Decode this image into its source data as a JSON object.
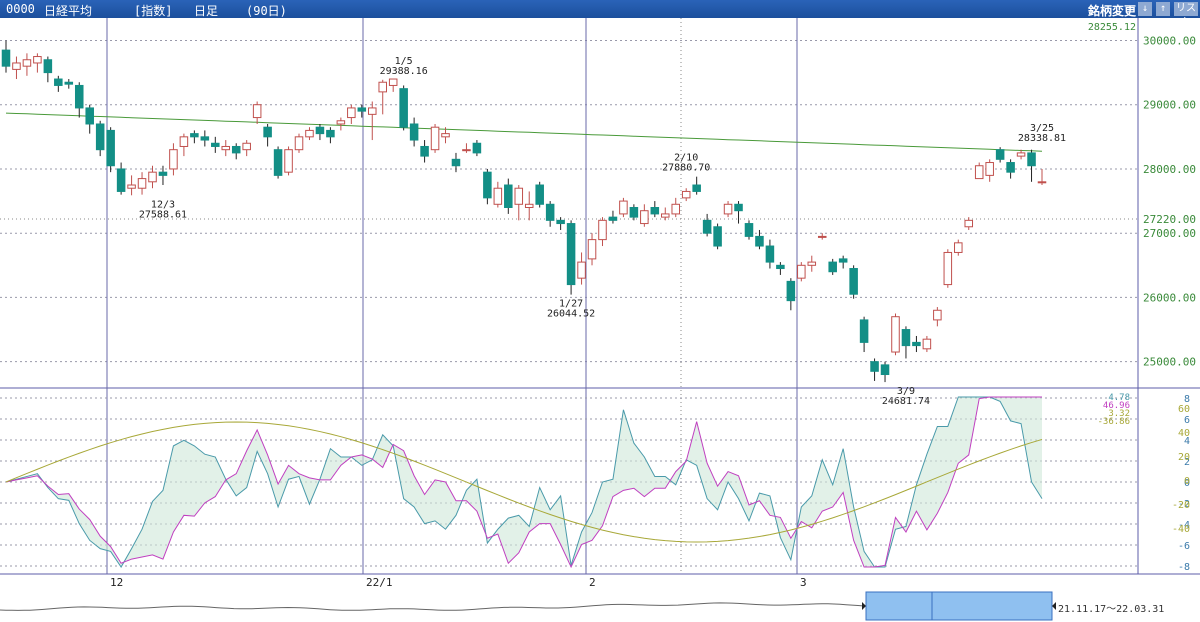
{
  "header": {
    "code": "0000",
    "name": "日経平均",
    "category": "[指数]",
    "timeframe": "日足",
    "period": "(90日)",
    "change_button": "銘柄変更",
    "list_button": "リスト"
  },
  "colors": {
    "up": "#c0504d",
    "down": "#138f86",
    "ma": "#4a9a3a",
    "ind1": "#4a9aaa",
    "ind2": "#c040c0",
    "ind3": "#a8a838"
  },
  "chart_data": {
    "type": "candlestick",
    "price_ticks": [
      "30000.00",
      "29000.00",
      "28000.00",
      "27000.00",
      "26000.00",
      "25000.00"
    ],
    "price_range": [
      24590,
      30350
    ],
    "current_marker": "27220.00",
    "top_marker": "28255.12",
    "date_labels": [
      "12",
      "22/1",
      "2",
      "3"
    ],
    "indicator_ticks": [
      "8",
      "6",
      "4",
      "2",
      "0",
      "-2",
      "-4",
      "-6",
      "-8"
    ],
    "indicator_ticks_right": [
      "60",
      "40",
      "20",
      "0",
      "-20",
      "-40"
    ],
    "indicator_values": [
      "4.78",
      "46.96",
      "3.32",
      "-36.86"
    ],
    "annotations": [
      {
        "date": "12/3",
        "value": "27588.61",
        "type": "low"
      },
      {
        "date": "1/5",
        "value": "29388.16",
        "type": "high"
      },
      {
        "date": "1/27",
        "value": "26044.52",
        "type": "low"
      },
      {
        "date": "2/10",
        "value": "27880.70",
        "type": "high"
      },
      {
        "date": "3/9",
        "value": "24681.74",
        "type": "low"
      },
      {
        "date": "3/25",
        "value": "28338.81",
        "type": "high"
      }
    ],
    "candles": [
      [
        29850,
        29600,
        30000,
        29500
      ],
      [
        29550,
        29650,
        29750,
        29400
      ],
      [
        29600,
        29700,
        29800,
        29450
      ],
      [
        29650,
        29750,
        29800,
        29500
      ],
      [
        29700,
        29500,
        29750,
        29350
      ],
      [
        29400,
        29300,
        29450,
        29200
      ],
      [
        29350,
        29320,
        29400,
        29250
      ],
      [
        29300,
        28950,
        29350,
        28800
      ],
      [
        28950,
        28700,
        29000,
        28550
      ],
      [
        28700,
        28300,
        28750,
        28200
      ],
      [
        28600,
        28050,
        28650,
        27950
      ],
      [
        28000,
        27650,
        28100,
        27600
      ],
      [
        27700,
        27750,
        27900,
        27590
      ],
      [
        27700,
        27850,
        27950,
        27600
      ],
      [
        27800,
        27950,
        28050,
        27700
      ],
      [
        27950,
        27900,
        28050,
        27750
      ],
      [
        28000,
        28300,
        28400,
        27900
      ],
      [
        28350,
        28500,
        28550,
        28200
      ],
      [
        28550,
        28500,
        28600,
        28400
      ],
      [
        28500,
        28450,
        28600,
        28350
      ],
      [
        28400,
        28350,
        28500,
        28250
      ],
      [
        28300,
        28350,
        28450,
        28200
      ],
      [
        28350,
        28250,
        28400,
        28150
      ],
      [
        28300,
        28400,
        28450,
        28200
      ],
      [
        28800,
        29000,
        29050,
        28700
      ],
      [
        28650,
        28500,
        28700,
        28350
      ],
      [
        28300,
        27900,
        28350,
        27850
      ],
      [
        27950,
        28300,
        28350,
        27900
      ],
      [
        28300,
        28500,
        28550,
        28250
      ],
      [
        28500,
        28600,
        28650,
        28450
      ],
      [
        28650,
        28550,
        28700,
        28450
      ],
      [
        28600,
        28500,
        28650,
        28400
      ],
      [
        28700,
        28750,
        28800,
        28600
      ],
      [
        28800,
        28950,
        29000,
        28700
      ],
      [
        28950,
        28900,
        29000,
        28800
      ],
      [
        28850,
        28950,
        29050,
        28450
      ],
      [
        29200,
        29350,
        29388,
        28850
      ],
      [
        29300,
        29400,
        29388,
        29200
      ],
      [
        29250,
        28650,
        29300,
        28600
      ],
      [
        28700,
        28450,
        28800,
        28350
      ],
      [
        28350,
        28200,
        28450,
        28100
      ],
      [
        28300,
        28650,
        28700,
        28250
      ],
      [
        28500,
        28550,
        28650,
        28400
      ],
      [
        28150,
        28050,
        28250,
        27950
      ],
      [
        28300,
        28300,
        28400,
        28250
      ],
      [
        28400,
        28250,
        28450,
        28200
      ],
      [
        27950,
        27550,
        28000,
        27450
      ],
      [
        27450,
        27700,
        27800,
        27400
      ],
      [
        27750,
        27400,
        27850,
        27300
      ],
      [
        27450,
        27700,
        27750,
        27200
      ],
      [
        27400,
        27450,
        27650,
        27200
      ],
      [
        27750,
        27450,
        27800,
        27400
      ],
      [
        27450,
        27200,
        27500,
        27100
      ],
      [
        27200,
        27150,
        27250,
        27050
      ],
      [
        27150,
        26200,
        27200,
        26044
      ],
      [
        26300,
        26550,
        26700,
        26200
      ],
      [
        26600,
        26900,
        27000,
        26500
      ],
      [
        26900,
        27200,
        27250,
        26800
      ],
      [
        27250,
        27200,
        27350,
        27150
      ],
      [
        27300,
        27500,
        27550,
        27250
      ],
      [
        27400,
        27250,
        27450,
        27200
      ],
      [
        27150,
        27350,
        27450,
        27100
      ],
      [
        27400,
        27300,
        27500,
        27250
      ],
      [
        27250,
        27300,
        27400,
        27200
      ],
      [
        27300,
        27450,
        27550,
        27250
      ],
      [
        27550,
        27650,
        27700,
        27500
      ],
      [
        27750,
        27650,
        27880,
        27600
      ],
      [
        27200,
        27000,
        27300,
        26950
      ],
      [
        27100,
        26800,
        27150,
        26750
      ],
      [
        27300,
        27450,
        27500,
        27250
      ],
      [
        27450,
        27350,
        27500,
        27150
      ],
      [
        27150,
        26950,
        27200,
        26900
      ],
      [
        26950,
        26800,
        27050,
        26750
      ],
      [
        26800,
        26550,
        26900,
        26450
      ],
      [
        26500,
        26450,
        26550,
        26350
      ],
      [
        26250,
        25950,
        26300,
        25800
      ],
      [
        26300,
        26500,
        26550,
        26250
      ],
      [
        26500,
        26550,
        26650,
        26400
      ],
      [
        26950,
        26950,
        27000,
        26900
      ],
      [
        26550,
        26400,
        26600,
        26350
      ],
      [
        26600,
        26550,
        26650,
        26450
      ],
      [
        26450,
        26050,
        26500,
        25980
      ],
      [
        25650,
        25300,
        25700,
        25150
      ],
      [
        25000,
        24850,
        25050,
        24700
      ],
      [
        24950,
        24800,
        25000,
        24682
      ],
      [
        25150,
        25700,
        25750,
        25100
      ],
      [
        25500,
        25250,
        25550,
        25050
      ],
      [
        25300,
        25250,
        25400,
        25150
      ],
      [
        25200,
        25350,
        25400,
        25150
      ],
      [
        25650,
        25800,
        25850,
        25550
      ],
      [
        26200,
        26700,
        26750,
        26150
      ],
      [
        26700,
        26850,
        26900,
        26650
      ],
      [
        27100,
        27200,
        27250,
        27050
      ],
      [
        27850,
        28050,
        28100,
        27850
      ],
      [
        27900,
        28100,
        28150,
        27800
      ],
      [
        28300,
        28150,
        28339,
        28100
      ],
      [
        28100,
        27950,
        28150,
        27850
      ],
      [
        28200,
        28250,
        28300,
        28150
      ],
      [
        28250,
        28050,
        28300,
        27800
      ],
      [
        27800,
        27800,
        28000,
        27750
      ]
    ]
  }
}
